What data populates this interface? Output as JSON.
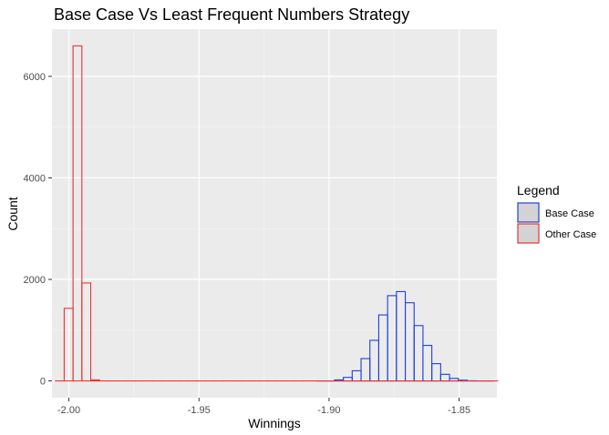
{
  "chart_data": {
    "type": "histogram",
    "title": "Base Case Vs Least Frequent Numbers Strategy",
    "xlabel": "Winnings",
    "ylabel": "Count",
    "xlim": [
      -2.0065,
      -1.8355
    ],
    "ylim": [
      -330,
      6930
    ],
    "x_ticks": [
      -2.0,
      -1.95,
      -1.9,
      -1.85
    ],
    "x_tick_labels": [
      "-2.00",
      "-1.95",
      "-1.90",
      "-1.85"
    ],
    "y_ticks": [
      0,
      2000,
      4000,
      6000
    ],
    "y_tick_labels": [
      "0",
      "2000",
      "4000",
      "6000"
    ],
    "grid": true,
    "legend": {
      "title": "Legend",
      "position": "right",
      "fill": "#d3d3d3",
      "items": [
        {
          "label": "Base Case",
          "color": "#1f3fe0"
        },
        {
          "label": "Other Case",
          "color": "#ee3333"
        }
      ]
    },
    "series": [
      {
        "name": "Base Case",
        "color": "#1f3fe0",
        "x_start": -1.9047,
        "bin_width": 0.0034,
        "values": [
          0,
          0,
          20,
          70,
          200,
          440,
          800,
          1300,
          1680,
          1760,
          1540,
          1090,
          700,
          340,
          130,
          50,
          15,
          3,
          0,
          0
        ]
      },
      {
        "name": "Other Case",
        "color": "#ee3333",
        "x_start": -2.0052,
        "bin_width": 0.0034,
        "values": [
          0,
          1430,
          6600,
          1930,
          20,
          0,
          0,
          0,
          0,
          0,
          0,
          0,
          0,
          0,
          0,
          0,
          0,
          0,
          0,
          0,
          0,
          0,
          0,
          0,
          0,
          0,
          0,
          0,
          0,
          0,
          0,
          0,
          0,
          0,
          0,
          0,
          0,
          0,
          0,
          0,
          0,
          0,
          0,
          0,
          0,
          0,
          0,
          0,
          0,
          0
        ]
      }
    ]
  }
}
